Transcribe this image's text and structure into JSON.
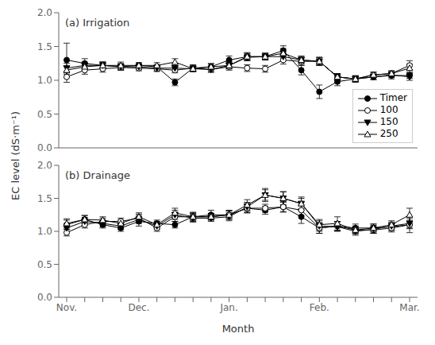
{
  "chart_data": [
    {
      "type": "line",
      "title": "(a) Irrigation",
      "ylabel": "EC level (dS·m⁻¹)",
      "categories": [
        "Nov.",
        null,
        null,
        null,
        "Dec.",
        null,
        null,
        null,
        null,
        "Jan.",
        null,
        null,
        null,
        null,
        "Feb.",
        null,
        null,
        null,
        null,
        "Mar."
      ],
      "ylim": [
        0.0,
        2.0
      ],
      "yticks": [
        {
          "value": 0.0,
          "label": "0.0"
        },
        {
          "value": 0.5,
          "label": "0.5"
        },
        {
          "value": 1.0,
          "label": "1.0"
        },
        {
          "value": 1.5,
          "label": "1.5"
        },
        {
          "value": 2.0,
          "label": "2.0"
        }
      ],
      "grid": false,
      "legend": "lower right",
      "tick_labels": "y",
      "series": [
        {
          "name": "Timer",
          "color": "#000000",
          "marker": "circle",
          "values": [
            1.3,
            1.25,
            1.22,
            1.2,
            1.22,
            1.2,
            0.97,
            1.18,
            1.2,
            1.3,
            1.35,
            1.35,
            1.44,
            1.15,
            0.83,
            0.98,
            1.02,
            1.05,
            1.07,
            1.07
          ],
          "errors": [
            0.25,
            0.07,
            0.05,
            0.05,
            0.04,
            0.03,
            0.05,
            0.05,
            0.05,
            0.06,
            0.06,
            0.05,
            0.07,
            0.07,
            0.1,
            0.06,
            0.05,
            0.04,
            0.05,
            0.04
          ]
        },
        {
          "name": "100",
          "color": "#000000",
          "marker": "circle-open",
          "values": [
            1.05,
            1.15,
            1.17,
            1.19,
            1.18,
            1.17,
            1.15,
            1.18,
            1.16,
            1.2,
            1.18,
            1.17,
            1.3,
            1.28,
            1.28,
            1.05,
            1.02,
            1.08,
            1.1,
            1.22
          ],
          "errors": [
            0.08,
            0.06,
            0.05,
            0.04,
            0.04,
            0.04,
            0.04,
            0.04,
            0.04,
            0.05,
            0.05,
            0.05,
            0.06,
            0.06,
            0.06,
            0.05,
            0.04,
            0.04,
            0.04,
            0.07
          ]
        },
        {
          "name": "150",
          "color": "#000000",
          "marker": "triangle-down",
          "values": [
            1.18,
            1.22,
            1.22,
            1.2,
            1.2,
            1.18,
            1.18,
            1.17,
            1.16,
            1.22,
            1.34,
            1.35,
            1.35,
            1.3,
            1.28,
            1.05,
            1.02,
            1.05,
            1.08,
            1.05
          ],
          "errors": [
            0.07,
            0.05,
            0.05,
            0.04,
            0.04,
            0.04,
            0.04,
            0.04,
            0.04,
            0.05,
            0.05,
            0.05,
            0.06,
            0.05,
            0.05,
            0.05,
            0.04,
            0.04,
            0.04,
            0.05
          ]
        },
        {
          "name": "250",
          "color": "#000000",
          "marker": "triangle-up-open",
          "values": [
            1.15,
            1.2,
            1.22,
            1.22,
            1.22,
            1.22,
            1.27,
            1.17,
            1.2,
            1.22,
            1.35,
            1.35,
            1.4,
            1.3,
            1.28,
            1.05,
            1.02,
            1.08,
            1.1,
            1.18
          ],
          "errors": [
            0.06,
            0.05,
            0.05,
            0.05,
            0.04,
            0.04,
            0.05,
            0.04,
            0.04,
            0.05,
            0.05,
            0.05,
            0.07,
            0.06,
            0.06,
            0.05,
            0.04,
            0.04,
            0.04,
            0.06
          ]
        }
      ]
    },
    {
      "type": "line",
      "title": "(b) Drainage",
      "xlabel": "Month",
      "categories": [
        "Nov.",
        null,
        null,
        null,
        "Dec.",
        null,
        null,
        null,
        null,
        "Jan.",
        null,
        null,
        null,
        null,
        "Feb.",
        null,
        null,
        null,
        null,
        "Mar."
      ],
      "ylim": [
        0.0,
        2.0
      ],
      "yticks": [
        {
          "value": 0.0,
          "label": "0.0"
        },
        {
          "value": 0.5,
          "label": "0.5"
        },
        {
          "value": 1.0,
          "label": "1.0"
        },
        {
          "value": 1.5,
          "label": "1.5"
        },
        {
          "value": 2.0,
          "label": "2.0"
        }
      ],
      "grid": false,
      "series": [
        {
          "name": "Timer",
          "color": "#000000",
          "marker": "circle",
          "values": [
            1.1,
            1.18,
            1.1,
            1.05,
            1.15,
            1.12,
            1.1,
            1.22,
            1.25,
            1.25,
            1.35,
            1.32,
            1.37,
            1.22,
            1.05,
            1.08,
            1.05,
            1.05,
            1.07,
            1.1
          ],
          "errors": [
            0.07,
            0.06,
            0.05,
            0.05,
            0.07,
            0.05,
            0.05,
            0.07,
            0.07,
            0.07,
            0.07,
            0.06,
            0.08,
            0.1,
            0.08,
            0.07,
            0.06,
            0.06,
            0.06,
            0.06
          ]
        },
        {
          "name": "100",
          "color": "#000000",
          "marker": "circle-open",
          "values": [
            0.98,
            1.1,
            1.15,
            1.15,
            1.2,
            1.05,
            1.22,
            1.22,
            1.22,
            1.25,
            1.35,
            1.35,
            1.37,
            1.32,
            1.05,
            1.08,
            1.02,
            1.02,
            1.05,
            1.1
          ],
          "errors": [
            0.05,
            0.05,
            0.05,
            0.05,
            0.06,
            0.05,
            0.07,
            0.05,
            0.05,
            0.06,
            0.07,
            0.06,
            0.07,
            0.08,
            0.08,
            0.07,
            0.05,
            0.05,
            0.06,
            0.12
          ]
        },
        {
          "name": "150",
          "color": "#000000",
          "marker": "triangle-down",
          "values": [
            1.05,
            1.15,
            1.12,
            1.08,
            1.18,
            1.08,
            1.25,
            1.2,
            1.2,
            1.22,
            1.37,
            1.55,
            1.5,
            1.42,
            1.08,
            1.07,
            1.0,
            1.03,
            1.08,
            1.12
          ],
          "errors": [
            0.06,
            0.06,
            0.05,
            0.05,
            0.06,
            0.05,
            0.07,
            0.06,
            0.05,
            0.06,
            0.07,
            0.08,
            0.1,
            0.1,
            0.08,
            0.07,
            0.06,
            0.06,
            0.06,
            0.07
          ]
        },
        {
          "name": "250",
          "color": "#000000",
          "marker": "triangle-up-open",
          "values": [
            1.12,
            1.18,
            1.17,
            1.12,
            1.22,
            1.1,
            1.28,
            1.22,
            1.22,
            1.25,
            1.4,
            1.55,
            1.5,
            1.42,
            1.1,
            1.12,
            1.02,
            1.05,
            1.1,
            1.25
          ],
          "errors": [
            0.07,
            0.06,
            0.05,
            0.05,
            0.06,
            0.05,
            0.07,
            0.06,
            0.05,
            0.06,
            0.08,
            0.1,
            0.1,
            0.08,
            0.08,
            0.1,
            0.06,
            0.06,
            0.06,
            0.1
          ]
        }
      ]
    }
  ]
}
